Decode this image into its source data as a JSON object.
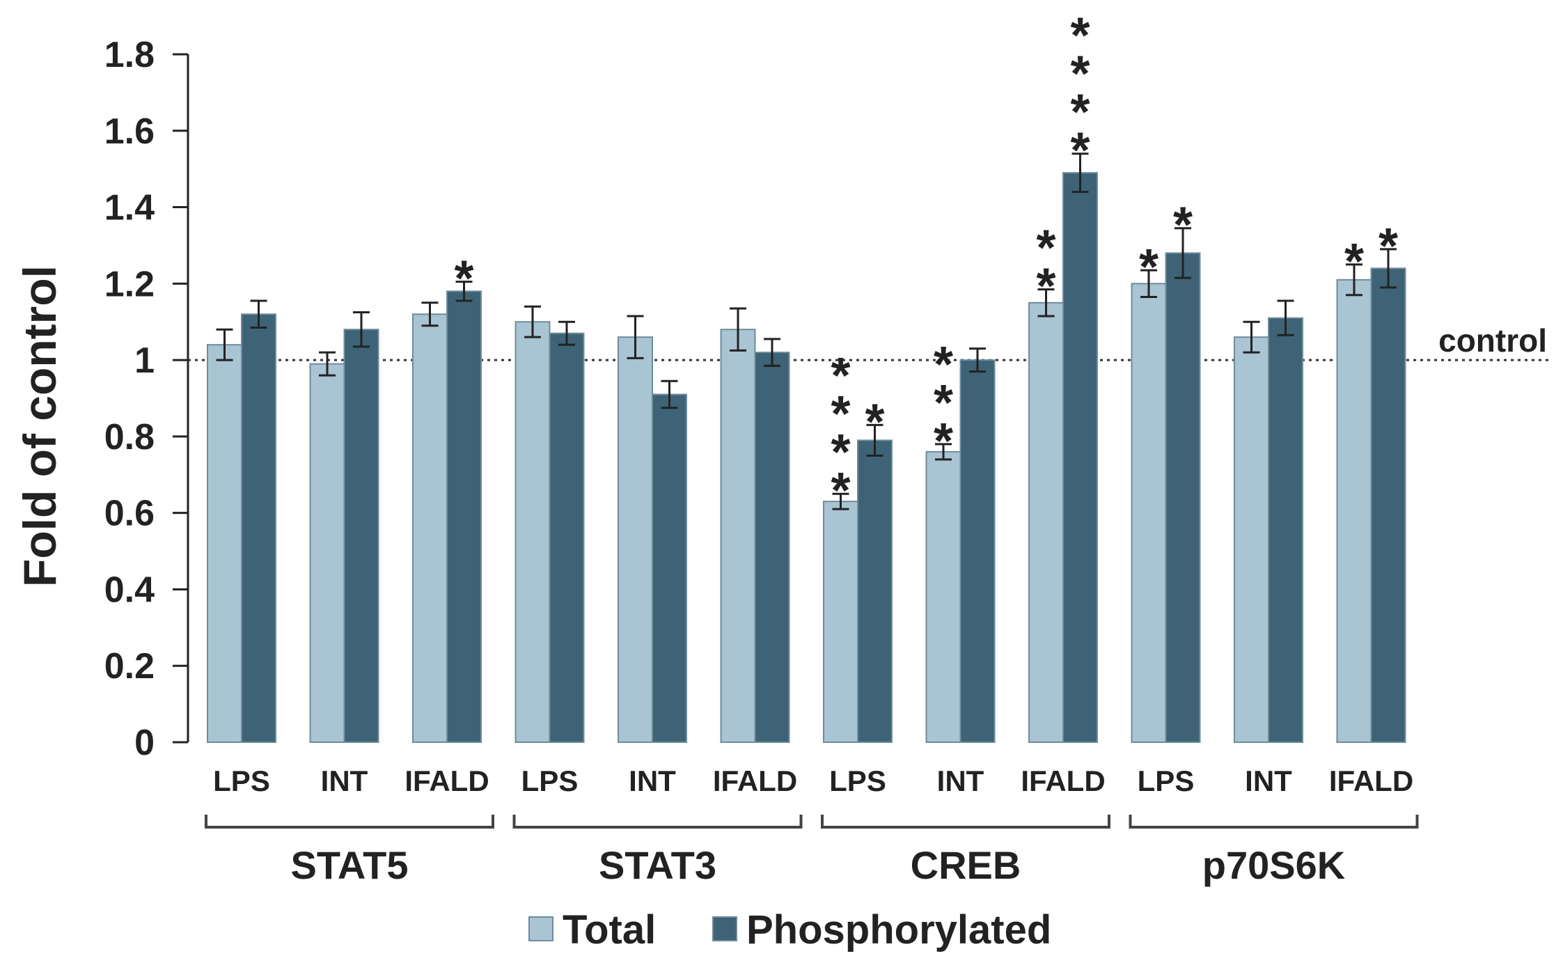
{
  "chart_data": {
    "type": "bar",
    "ylabel": "Fold of control",
    "ylim": [
      0,
      1.8
    ],
    "yticks": [
      0,
      0.2,
      0.4,
      0.6,
      0.8,
      1,
      1.2,
      1.4,
      1.6,
      1.8
    ],
    "ytick_labels": [
      "0",
      "0.2",
      "0.4",
      "0.6",
      "0.8",
      "1",
      "1.2",
      "1.4",
      "1.6",
      "1.8"
    ],
    "reference_line": {
      "value": 1,
      "label": "control"
    },
    "groups": [
      {
        "name": "STAT5",
        "categories": [
          "LPS",
          "INT",
          "IFALD"
        ]
      },
      {
        "name": "STAT3",
        "categories": [
          "LPS",
          "INT",
          "IFALD"
        ]
      },
      {
        "name": "CREB",
        "categories": [
          "LPS",
          "INT",
          "IFALD"
        ]
      },
      {
        "name": "p70S6K",
        "categories": [
          "LPS",
          "INT",
          "IFALD"
        ]
      }
    ],
    "series": [
      {
        "name": "Total",
        "color": "#a9c4d2",
        "values": [
          1.04,
          0.99,
          1.12,
          1.1,
          1.06,
          1.08,
          0.63,
          0.76,
          1.15,
          1.2,
          1.06,
          1.21
        ],
        "errors": [
          0.04,
          0.03,
          0.03,
          0.04,
          0.055,
          0.055,
          0.02,
          0.02,
          0.035,
          0.035,
          0.04,
          0.04
        ],
        "significance": [
          "",
          "",
          "",
          "",
          "",
          "",
          "****",
          "***",
          "**",
          "*",
          "",
          "*"
        ]
      },
      {
        "name": "Phosphorylated",
        "color": "#3e6376",
        "values": [
          1.12,
          1.08,
          1.18,
          1.07,
          0.91,
          1.02,
          0.79,
          1.0,
          1.49,
          1.28,
          1.11,
          1.24
        ],
        "errors": [
          0.035,
          0.045,
          0.025,
          0.03,
          0.035,
          0.035,
          0.04,
          0.03,
          0.05,
          0.065,
          0.045,
          0.05
        ],
        "significance": [
          "",
          "",
          "*",
          "",
          "",
          "",
          "*",
          "",
          "****",
          "*",
          "",
          "*"
        ]
      }
    ],
    "legend": {
      "position": "bottom",
      "entries": [
        "Total",
        "Phosphorylated"
      ]
    },
    "grid": false
  }
}
